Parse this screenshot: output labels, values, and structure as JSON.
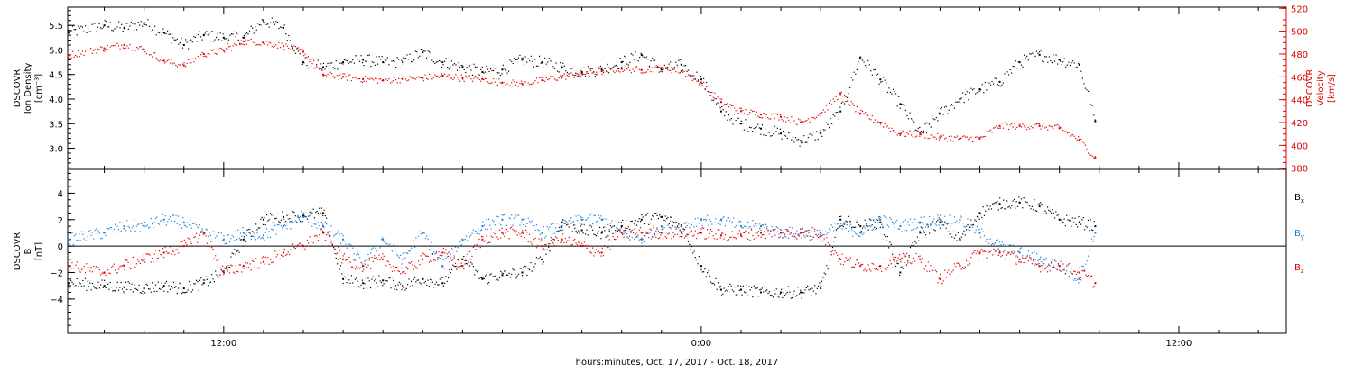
{
  "chart_data": [
    {
      "type": "scatter",
      "panel": "density-velocity",
      "x_unit": "hours relative to Oct. 17, 2017 00:00",
      "xlim": [
        8.08,
        38.7
      ],
      "xticks": [
        12,
        24,
        36
      ],
      "xtick_labels": [
        "12:00",
        "0:00",
        "12:00"
      ],
      "left_axis": {
        "label": [
          "DSCOVR",
          "Ion Density",
          "[cm⁻³]"
        ],
        "ylim": [
          2.57,
          5.87
        ],
        "ticks": [
          3.0,
          3.5,
          4.0,
          4.5,
          5.0,
          5.5
        ],
        "tick_labels": [
          "3.0",
          "3.5",
          "4.0",
          "4.5",
          "5.0",
          "5.5"
        ],
        "color": "#000000"
      },
      "right_axis": {
        "label": [
          "DSCOVR",
          "Velocity",
          "[km/s]"
        ],
        "ylim": [
          379,
          521
        ],
        "ticks": [
          380,
          400,
          420,
          440,
          460,
          480,
          500,
          520
        ],
        "tick_labels": [
          "380",
          "400",
          "420",
          "440",
          "460",
          "480",
          "500",
          "520"
        ],
        "color": "#dd0000"
      },
      "series": [
        {
          "axis": "left",
          "color": "#000000",
          "x": [
            8.1,
            9.0,
            9.5,
            10.0,
            10.5,
            11.0,
            11.5,
            12.0,
            12.5,
            13.0,
            13.5,
            14.0,
            14.5,
            15.0,
            15.5,
            16.0,
            16.5,
            17.0,
            17.5,
            18.0,
            18.5,
            19.0,
            19.5,
            20.0,
            20.5,
            21.0,
            21.5,
            22.0,
            22.5,
            23.0,
            23.5,
            24.0,
            24.5,
            25.0,
            25.5,
            26.0,
            26.5,
            27.0,
            27.5,
            28.0,
            28.5,
            29.0,
            29.5,
            30.0,
            30.5,
            31.0,
            31.5,
            32.0,
            32.5,
            33.0,
            33.5,
            33.9
          ],
          "y": [
            5.35,
            5.5,
            5.45,
            5.55,
            5.35,
            5.1,
            5.3,
            5.25,
            5.25,
            5.6,
            5.45,
            4.75,
            4.65,
            4.75,
            4.8,
            4.75,
            4.75,
            4.95,
            4.75,
            4.65,
            4.55,
            4.6,
            4.8,
            4.75,
            4.65,
            4.55,
            4.6,
            4.75,
            4.9,
            4.6,
            4.7,
            4.4,
            3.75,
            3.5,
            3.4,
            3.3,
            3.15,
            3.3,
            3.75,
            4.85,
            4.4,
            3.9,
            3.3,
            3.7,
            4.0,
            4.2,
            4.35,
            4.75,
            4.9,
            4.8,
            4.7,
            3.55
          ]
        },
        {
          "axis": "right",
          "color": "#dd0000",
          "x": [
            8.1,
            9.0,
            9.5,
            10.0,
            10.5,
            11.0,
            11.5,
            12.0,
            12.5,
            13.0,
            13.5,
            14.0,
            14.5,
            15.0,
            15.5,
            16.0,
            16.5,
            17.0,
            17.5,
            18.0,
            18.5,
            19.0,
            19.5,
            20.0,
            20.5,
            21.0,
            21.5,
            22.0,
            22.5,
            23.0,
            23.5,
            24.0,
            24.5,
            25.0,
            25.5,
            26.0,
            26.5,
            27.0,
            27.5,
            28.0,
            28.5,
            29.0,
            29.5,
            30.0,
            30.5,
            31.0,
            31.5,
            32.0,
            32.5,
            33.0,
            33.5,
            33.9
          ],
          "y": [
            479,
            485,
            488,
            484,
            474,
            470,
            480,
            483,
            491,
            490,
            487,
            482,
            462,
            460,
            458,
            457,
            458,
            459,
            461,
            459,
            458,
            455,
            454,
            457,
            460,
            463,
            465,
            467,
            466,
            468,
            465,
            455,
            438,
            430,
            427,
            425,
            420,
            428,
            445,
            428,
            420,
            410,
            410,
            407,
            406,
            406,
            417,
            417,
            417,
            415,
            405,
            389
          ]
        }
      ]
    },
    {
      "type": "scatter",
      "panel": "magnetic-field",
      "x_unit": "hours relative to Oct. 17, 2017 00:00",
      "xlim": [
        8.08,
        38.7
      ],
      "xticks": [
        12,
        24,
        36
      ],
      "xtick_labels": [
        "12:00",
        "0:00",
        "12:00"
      ],
      "ylabel": [
        "DSCOVR",
        "B",
        "[nT]"
      ],
      "ylim": [
        -6.6,
        5.8
      ],
      "yticks": [
        -4,
        -2,
        0,
        2,
        4
      ],
      "ytick_labels": [
        "−4",
        "−2",
        "0",
        "2",
        "4"
      ],
      "zero_line": true,
      "series": [
        {
          "name": "Bx",
          "color": "#000000",
          "x": [
            8.1,
            9.0,
            9.5,
            10.0,
            10.5,
            11.0,
            11.5,
            12.0,
            12.5,
            13.0,
            13.5,
            14.0,
            14.5,
            15.0,
            15.5,
            16.0,
            16.5,
            17.0,
            17.5,
            18.0,
            18.5,
            19.0,
            19.5,
            20.0,
            20.5,
            21.0,
            21.5,
            22.0,
            22.5,
            23.0,
            23.5,
            24.0,
            24.5,
            25.0,
            25.5,
            26.0,
            26.5,
            27.0,
            27.5,
            28.0,
            28.5,
            29.0,
            29.5,
            30.0,
            30.5,
            31.0,
            31.5,
            32.0,
            32.5,
            33.0,
            33.5,
            33.9
          ],
          "y": [
            -2.8,
            -3.0,
            -3.1,
            -3.2,
            -3.0,
            -3.2,
            -2.8,
            -2.0,
            0.5,
            2.0,
            2.2,
            2.3,
            2.5,
            -2.5,
            -2.8,
            -2.6,
            -3.0,
            -2.5,
            -2.8,
            -1.0,
            -2.5,
            -2.2,
            -2.0,
            -1.0,
            1.8,
            1.2,
            1.0,
            1.5,
            2.0,
            2.2,
            1.5,
            -1.5,
            -3.3,
            -3.3,
            -3.5,
            -3.5,
            -3.5,
            -3.2,
            2.0,
            1.5,
            1.8,
            -2.0,
            1.0,
            1.8,
            0.5,
            2.5,
            3.2,
            3.3,
            3.0,
            2.0,
            1.8,
            1.5
          ]
        },
        {
          "name": "By",
          "color": "#1a7fd4",
          "x": [
            8.1,
            9.0,
            9.5,
            10.0,
            10.5,
            11.0,
            11.5,
            12.0,
            12.5,
            13.0,
            13.5,
            14.0,
            14.5,
            15.0,
            15.5,
            16.0,
            16.5,
            17.0,
            17.5,
            18.0,
            18.5,
            19.0,
            19.5,
            20.0,
            20.5,
            21.0,
            21.5,
            22.0,
            22.5,
            23.0,
            23.5,
            24.0,
            24.5,
            25.0,
            25.5,
            26.0,
            26.5,
            27.0,
            27.5,
            28.0,
            28.5,
            29.0,
            29.5,
            30.0,
            30.5,
            31.0,
            31.5,
            32.0,
            32.5,
            33.0,
            33.5,
            33.9
          ],
          "y": [
            0.5,
            1.0,
            1.5,
            1.5,
            2.0,
            1.8,
            1.0,
            0.5,
            1.0,
            0.8,
            1.5,
            2.2,
            1.5,
            0.5,
            -1.5,
            0.5,
            -1.0,
            1.0,
            -1.5,
            0.5,
            1.5,
            2.0,
            2.0,
            1.0,
            1.5,
            2.0,
            2.0,
            1.0,
            0.5,
            1.5,
            1.5,
            2.0,
            2.0,
            1.5,
            1.5,
            1.0,
            1.0,
            0.8,
            1.5,
            1.0,
            2.0,
            1.5,
            1.8,
            2.0,
            2.0,
            1.0,
            0.0,
            -0.5,
            -1.0,
            -1.5,
            -2.5,
            1.0
          ]
        },
        {
          "name": "Bz",
          "color": "#dd0000",
          "x": [
            8.1,
            9.0,
            9.5,
            10.0,
            10.5,
            11.0,
            11.5,
            12.0,
            12.5,
            13.0,
            13.5,
            14.0,
            14.5,
            15.0,
            15.5,
            16.0,
            16.5,
            17.0,
            17.5,
            18.0,
            18.5,
            19.0,
            19.5,
            20.0,
            20.5,
            21.0,
            21.5,
            22.0,
            22.5,
            23.0,
            23.5,
            24.0,
            24.5,
            25.0,
            25.5,
            26.0,
            26.5,
            27.0,
            27.5,
            28.0,
            28.5,
            29.0,
            29.5,
            30.0,
            30.5,
            31.0,
            31.5,
            32.0,
            32.5,
            33.0,
            33.5,
            33.9
          ],
          "y": [
            -1.5,
            -2.0,
            -1.5,
            -1.0,
            -0.5,
            0.0,
            1.0,
            -2.0,
            -1.5,
            -1.2,
            -0.5,
            0.0,
            1.0,
            -1.0,
            -1.5,
            -1.0,
            -2.0,
            -1.0,
            -0.5,
            -1.5,
            0.5,
            1.0,
            1.0,
            0.0,
            0.5,
            0.0,
            -0.5,
            1.0,
            1.0,
            1.0,
            1.0,
            1.0,
            0.8,
            0.8,
            1.0,
            1.0,
            1.0,
            1.0,
            -1.0,
            -1.5,
            -1.5,
            -1.0,
            -1.0,
            -2.5,
            -1.5,
            -0.5,
            -0.5,
            -1.0,
            -1.5,
            -1.5,
            -2.0,
            -2.8
          ]
        }
      ],
      "legend": {
        "placement": "right",
        "entries": [
          {
            "main": "B",
            "sub": "x",
            "color": "#000000"
          },
          {
            "main": "B",
            "sub": "y",
            "color": "#1a7fd4"
          },
          {
            "main": "B",
            "sub": "z",
            "color": "#dd0000"
          }
        ]
      }
    }
  ],
  "x_axis_title": "hours:minutes, Oct. 17, 2017 - Oct. 18, 2017"
}
